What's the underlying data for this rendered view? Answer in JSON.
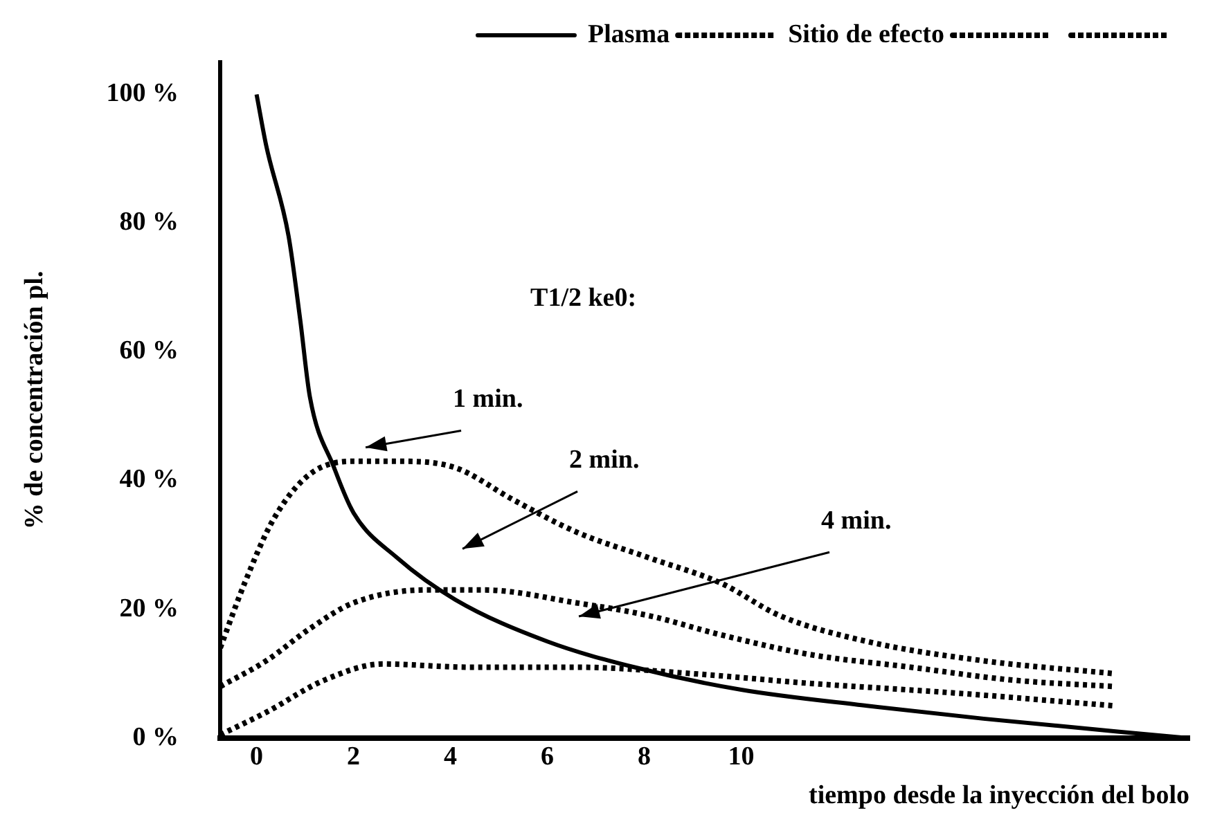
{
  "chart_data": {
    "type": "line",
    "xlabel": "tiempo desde la inyección del bolo",
    "ylabel": "% de concentración pl.",
    "xlim": [
      -0.75,
      19.25
    ],
    "xticks": [
      0,
      2,
      4,
      6,
      8,
      10
    ],
    "ylim": [
      0,
      105
    ],
    "yticks": [
      {
        "value": 0,
        "label": "0 %"
      },
      {
        "value": 20,
        "label": "20 %"
      },
      {
        "value": 40,
        "label": "40 %"
      },
      {
        "value": 60,
        "label": "60 %"
      },
      {
        "value": 80,
        "label": "80 %"
      },
      {
        "value": 100,
        "label": "100 %"
      }
    ],
    "grid": false,
    "legend": "top right",
    "marker": "none",
    "series": [
      {
        "name": "Plasma",
        "color": "#000000",
        "line_style": "solid",
        "x": [
          0,
          0.2,
          0.66,
          0.9,
          1.1,
          1.6,
          2.0,
          2.9,
          4.1,
          6.0,
          7.8,
          10,
          12.6,
          15,
          19.2
        ],
        "values": [
          100,
          92,
          78,
          65,
          53,
          42,
          35,
          28,
          21.5,
          15,
          11,
          7.5,
          5,
          3,
          0
        ]
      },
      {
        "name": "Sitio de efecto",
        "color": "#000000",
        "line_style": "dotted",
        "x": [
          -0.75,
          -0.25,
          0.35,
          1.1,
          2.0,
          2.9,
          4.1,
          5.3,
          6.6,
          8.1,
          9.6,
          10.8,
          12.6,
          15,
          17.7
        ],
        "values": [
          14,
          24,
          34,
          41,
          43,
          43,
          42,
          37,
          32,
          28,
          24,
          19,
          15,
          12,
          10
        ]
      },
      {
        "color": "#000000",
        "line_style": "dotted",
        "x": [
          -0.75,
          0.2,
          1.1,
          2.0,
          3.5,
          4.7,
          6.6,
          8.1,
          9.6,
          11.4,
          13.5,
          15.6,
          17.7
        ],
        "values": [
          8,
          12,
          17,
          21,
          23,
          23,
          21,
          19,
          16,
          13,
          11,
          9,
          8
        ]
      },
      {
        "color": "#000000",
        "line_style": "dotted",
        "x": [
          -0.75,
          0.2,
          1.4,
          2.6,
          4.4,
          6.6,
          9,
          11.4,
          14.4,
          17.7
        ],
        "values": [
          0.5,
          4,
          9,
          11.5,
          11,
          11,
          10,
          8.5,
          7,
          5
        ]
      }
    ],
    "annotations": [
      "T1/2 ke0:",
      "1 min.",
      "2 min.",
      "4 min."
    ]
  }
}
